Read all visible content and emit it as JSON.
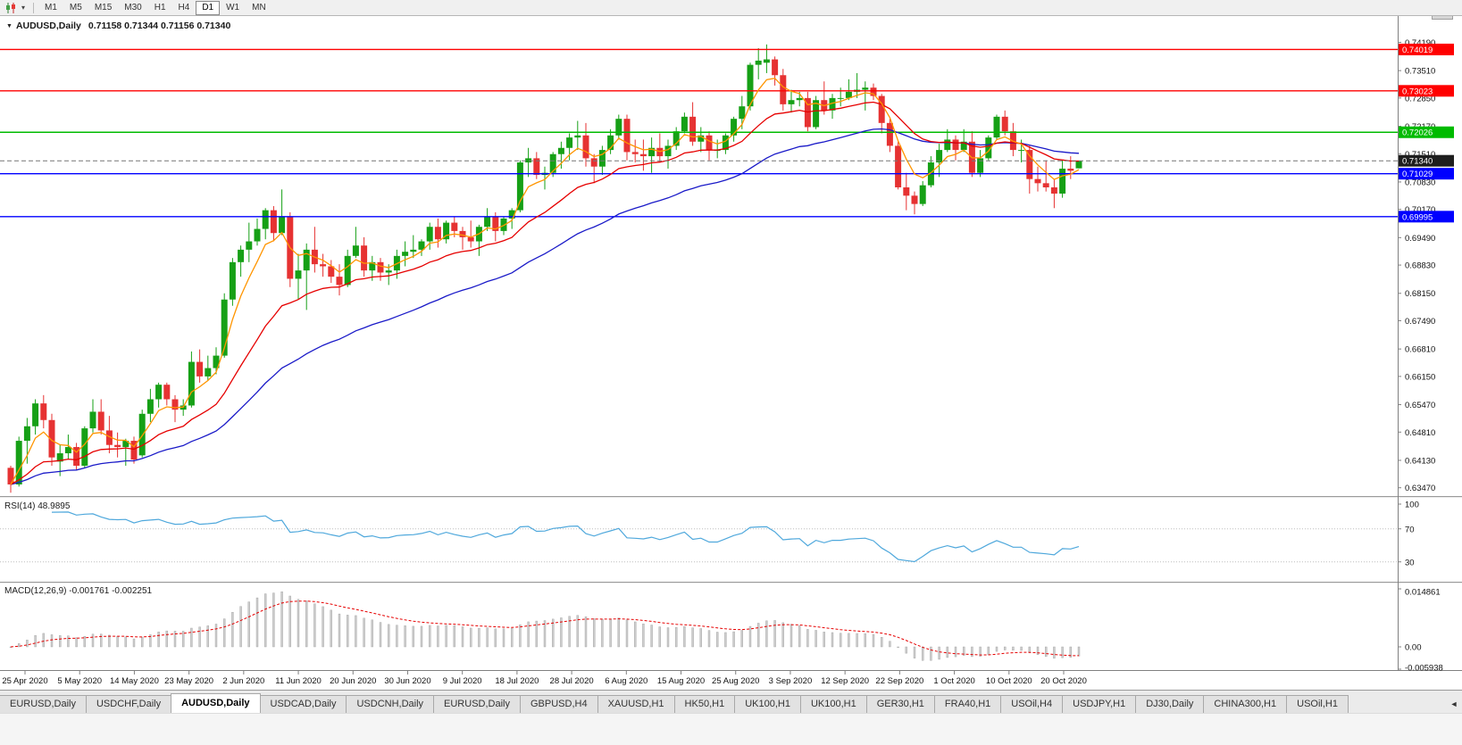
{
  "toolbar": {
    "timeframes": [
      "M1",
      "M5",
      "M15",
      "M30",
      "H1",
      "H4",
      "D1",
      "W1",
      "MN"
    ],
    "active_timeframe": "D1"
  },
  "chart": {
    "symbol_title": "AUDUSD,Daily",
    "ohlc_readout": "0.71158 0.71344 0.71156 0.71340"
  },
  "chart_data": {
    "type": "candlestick",
    "symbol": "AUDUSD",
    "period": "Daily",
    "title": "AUDUSD,Daily 0.71158 0.71344 0.71156 0.71340",
    "colors": {
      "up": "#16A016",
      "down": "#E63232",
      "ma_fast": "#FF9500",
      "ma_mid": "#E60000",
      "ma_slow": "#1A1AC8",
      "rsi_line": "#4FA8DC",
      "macd_hist": "#CDCDCD",
      "macd_hist_edge": "#9F9F9F",
      "macd_signal": "#E60000",
      "bid_line": "#777777",
      "bid_label_bg": "#1E1E1E",
      "axis_text": "#111111"
    },
    "price_axis_ticks": [
      "0.74190",
      "0.73510",
      "0.72850",
      "0.72170",
      "0.71510",
      "0.70830",
      "0.70170",
      "0.69490",
      "0.68830",
      "0.68150",
      "0.67490",
      "0.66810",
      "0.66150",
      "0.65470",
      "0.64810",
      "0.64130",
      "0.63470"
    ],
    "hlines": [
      {
        "value": 0.74019,
        "label": "0.74019",
        "color": "#FF0000"
      },
      {
        "value": 0.73023,
        "label": "0.73023",
        "color": "#FF0000"
      },
      {
        "value": 0.72026,
        "label": "0.72026",
        "color": "#00BB00"
      },
      {
        "value": 0.71029,
        "label": "0.71029",
        "color": "#0000FF"
      },
      {
        "value": 0.69995,
        "label": "0.69995",
        "color": "#0000FF"
      }
    ],
    "bid": {
      "value": 0.7134,
      "label": "0.71340"
    },
    "moving_averages": [
      {
        "type": "ema",
        "period": 40,
        "color": "#1A1AC8"
      },
      {
        "type": "ema",
        "period": 18,
        "color": "#E60000"
      },
      {
        "type": "ema",
        "period": 5,
        "color": "#FF9500"
      }
    ],
    "date_labels": [
      "25 Apr 2020",
      "5 May 2020",
      "14 May 2020",
      "23 May 2020",
      "2 Jun 2020",
      "11 Jun 2020",
      "20 Jun 2020",
      "30 Jun 2020",
      "9 Jul 2020",
      "18 Jul 2020",
      "28 Jul 2020",
      "6 Aug 2020",
      "15 Aug 2020",
      "25 Aug 2020",
      "3 Sep 2020",
      "12 Sep 2020",
      "22 Sep 2020",
      "1 Oct 2020",
      "10 Oct 2020",
      "20 Oct 2020"
    ],
    "rsi": {
      "label": "RSI(14) 48.9895",
      "period": 14,
      "current": 48.9895,
      "levels": [
        70,
        30
      ],
      "axis_ticks": [
        "100",
        "70",
        "30"
      ]
    },
    "macd": {
      "label": "MACD(12,26,9) -0.001761 -0.002251",
      "fast": 12,
      "slow": 26,
      "signal": 9,
      "current_main": -0.001761,
      "current_signal": -0.002251,
      "axis_ticks": [
        "0.014861",
        "0.00",
        "-0.005938"
      ],
      "axis_values": [
        0.014861,
        0,
        -0.005938
      ]
    },
    "ohlc": [
      [
        0.6395,
        0.64,
        0.6335,
        0.6355
      ],
      [
        0.6355,
        0.647,
        0.635,
        0.646
      ],
      [
        0.646,
        0.6515,
        0.6405,
        0.6495
      ],
      [
        0.6495,
        0.656,
        0.6475,
        0.655
      ],
      [
        0.655,
        0.657,
        0.649,
        0.651
      ],
      [
        0.651,
        0.6525,
        0.64,
        0.642
      ],
      [
        0.641,
        0.645,
        0.6375,
        0.643
      ],
      [
        0.643,
        0.6475,
        0.6415,
        0.6445
      ],
      [
        0.6445,
        0.6455,
        0.639,
        0.64
      ],
      [
        0.64,
        0.6495,
        0.6395,
        0.649
      ],
      [
        0.649,
        0.656,
        0.648,
        0.653
      ],
      [
        0.653,
        0.656,
        0.6475,
        0.6485
      ],
      [
        0.6485,
        0.652,
        0.643,
        0.645
      ],
      [
        0.645,
        0.648,
        0.642,
        0.6445
      ],
      [
        0.6445,
        0.6465,
        0.64,
        0.646
      ],
      [
        0.646,
        0.647,
        0.6405,
        0.6415
      ],
      [
        0.6425,
        0.6535,
        0.642,
        0.6525
      ],
      [
        0.6525,
        0.6585,
        0.6505,
        0.656
      ],
      [
        0.656,
        0.66,
        0.654,
        0.6595
      ],
      [
        0.6595,
        0.66,
        0.6545,
        0.656
      ],
      [
        0.656,
        0.657,
        0.6505,
        0.6535
      ],
      [
        0.6535,
        0.656,
        0.652,
        0.6545
      ],
      [
        0.6545,
        0.6675,
        0.654,
        0.665
      ],
      [
        0.665,
        0.668,
        0.66,
        0.6615
      ],
      [
        0.6615,
        0.6665,
        0.6605,
        0.6635
      ],
      [
        0.6635,
        0.6685,
        0.662,
        0.6665
      ],
      [
        0.6665,
        0.6815,
        0.666,
        0.68
      ],
      [
        0.68,
        0.69,
        0.6785,
        0.689
      ],
      [
        0.689,
        0.693,
        0.6855,
        0.692
      ],
      [
        0.692,
        0.6985,
        0.689,
        0.694
      ],
      [
        0.694,
        0.6995,
        0.693,
        0.697
      ],
      [
        0.697,
        0.702,
        0.6945,
        0.7015
      ],
      [
        0.7015,
        0.7025,
        0.694,
        0.696
      ],
      [
        0.696,
        0.7065,
        0.6955,
        0.7
      ],
      [
        0.7,
        0.701,
        0.683,
        0.685
      ],
      [
        0.685,
        0.691,
        0.68,
        0.687
      ],
      [
        0.687,
        0.6935,
        0.6775,
        0.692
      ],
      [
        0.692,
        0.6975,
        0.6865,
        0.6885
      ],
      [
        0.6885,
        0.691,
        0.6855,
        0.688
      ],
      [
        0.688,
        0.6895,
        0.684,
        0.6855
      ],
      [
        0.6855,
        0.6885,
        0.681,
        0.6835
      ],
      [
        0.6835,
        0.692,
        0.683,
        0.6905
      ],
      [
        0.6905,
        0.6975,
        0.69,
        0.693
      ],
      [
        0.693,
        0.695,
        0.6855,
        0.687
      ],
      [
        0.687,
        0.6905,
        0.6845,
        0.689
      ],
      [
        0.689,
        0.69,
        0.6845,
        0.6865
      ],
      [
        0.6865,
        0.6885,
        0.6835,
        0.687
      ],
      [
        0.687,
        0.692,
        0.685,
        0.6905
      ],
      [
        0.6905,
        0.694,
        0.688,
        0.6915
      ],
      [
        0.6915,
        0.6955,
        0.69,
        0.692
      ],
      [
        0.692,
        0.6945,
        0.6905,
        0.694
      ],
      [
        0.694,
        0.6985,
        0.692,
        0.6975
      ],
      [
        0.6975,
        0.6995,
        0.6925,
        0.6945
      ],
      [
        0.6945,
        0.699,
        0.6935,
        0.6985
      ],
      [
        0.6985,
        0.7,
        0.695,
        0.6965
      ],
      [
        0.6965,
        0.6975,
        0.692,
        0.695
      ],
      [
        0.695,
        0.699,
        0.6925,
        0.694
      ],
      [
        0.694,
        0.698,
        0.6905,
        0.6975
      ],
      [
        0.6975,
        0.702,
        0.6965,
        0.7
      ],
      [
        0.7,
        0.701,
        0.694,
        0.6965
      ],
      [
        0.6965,
        0.7,
        0.6955,
        0.6995
      ],
      [
        0.6995,
        0.702,
        0.697,
        0.7015
      ],
      [
        0.7015,
        0.7135,
        0.701,
        0.713
      ],
      [
        0.713,
        0.7165,
        0.7095,
        0.714
      ],
      [
        0.714,
        0.7155,
        0.709,
        0.71
      ],
      [
        0.71,
        0.712,
        0.7065,
        0.7105
      ],
      [
        0.7105,
        0.7155,
        0.7095,
        0.715
      ],
      [
        0.715,
        0.718,
        0.7115,
        0.7165
      ],
      [
        0.7165,
        0.72,
        0.7135,
        0.719
      ],
      [
        0.719,
        0.723,
        0.716,
        0.7195
      ],
      [
        0.7195,
        0.7225,
        0.712,
        0.714
      ],
      [
        0.714,
        0.715,
        0.708,
        0.712
      ],
      [
        0.712,
        0.717,
        0.71,
        0.716
      ],
      [
        0.716,
        0.721,
        0.715,
        0.7195
      ],
      [
        0.7195,
        0.7245,
        0.7185,
        0.7235
      ],
      [
        0.7235,
        0.7245,
        0.7135,
        0.7155
      ],
      [
        0.7155,
        0.7185,
        0.713,
        0.715
      ],
      [
        0.715,
        0.7185,
        0.711,
        0.7145
      ],
      [
        0.7145,
        0.719,
        0.7105,
        0.7165
      ],
      [
        0.7165,
        0.72,
        0.713,
        0.7145
      ],
      [
        0.7145,
        0.7185,
        0.7115,
        0.717
      ],
      [
        0.717,
        0.7215,
        0.716,
        0.7205
      ],
      [
        0.7205,
        0.725,
        0.72,
        0.724
      ],
      [
        0.724,
        0.7275,
        0.717,
        0.718
      ],
      [
        0.718,
        0.7215,
        0.7155,
        0.7195
      ],
      [
        0.7195,
        0.7205,
        0.7135,
        0.716
      ],
      [
        0.716,
        0.7185,
        0.714,
        0.716
      ],
      [
        0.716,
        0.72,
        0.715,
        0.7195
      ],
      [
        0.7195,
        0.724,
        0.718,
        0.7235
      ],
      [
        0.7235,
        0.729,
        0.721,
        0.7265
      ],
      [
        0.7265,
        0.737,
        0.7255,
        0.7365
      ],
      [
        0.7365,
        0.7405,
        0.733,
        0.7375
      ],
      [
        0.737,
        0.7414,
        0.7345,
        0.7378
      ],
      [
        0.7378,
        0.7385,
        0.7315,
        0.734
      ],
      [
        0.734,
        0.7355,
        0.7255,
        0.727
      ],
      [
        0.727,
        0.7305,
        0.725,
        0.728
      ],
      [
        0.728,
        0.73,
        0.7265,
        0.7285
      ],
      [
        0.7285,
        0.73,
        0.7205,
        0.7215
      ],
      [
        0.7215,
        0.729,
        0.721,
        0.728
      ],
      [
        0.728,
        0.7325,
        0.7245,
        0.7255
      ],
      [
        0.7255,
        0.7295,
        0.7235,
        0.7285
      ],
      [
        0.7285,
        0.731,
        0.7265,
        0.7285
      ],
      [
        0.7285,
        0.733,
        0.728,
        0.73
      ],
      [
        0.73,
        0.7345,
        0.7285,
        0.7305
      ],
      [
        0.7305,
        0.7325,
        0.7255,
        0.731
      ],
      [
        0.731,
        0.732,
        0.728,
        0.729
      ],
      [
        0.729,
        0.7295,
        0.72,
        0.7225
      ],
      [
        0.7225,
        0.7235,
        0.7155,
        0.717
      ],
      [
        0.717,
        0.718,
        0.7065,
        0.707
      ],
      [
        0.707,
        0.7105,
        0.7015,
        0.705
      ],
      [
        0.705,
        0.706,
        0.7005,
        0.703
      ],
      [
        0.703,
        0.7085,
        0.7025,
        0.7075
      ],
      [
        0.7075,
        0.7145,
        0.707,
        0.713
      ],
      [
        0.713,
        0.7175,
        0.7095,
        0.716
      ],
      [
        0.716,
        0.721,
        0.7155,
        0.7185
      ],
      [
        0.7185,
        0.7195,
        0.7135,
        0.716
      ],
      [
        0.716,
        0.721,
        0.7155,
        0.718
      ],
      [
        0.718,
        0.7205,
        0.7095,
        0.7105
      ],
      [
        0.7105,
        0.716,
        0.7095,
        0.714
      ],
      [
        0.714,
        0.7195,
        0.7135,
        0.719
      ],
      [
        0.719,
        0.7245,
        0.7185,
        0.724
      ],
      [
        0.724,
        0.7255,
        0.7195,
        0.7205
      ],
      [
        0.7205,
        0.7225,
        0.7145,
        0.716
      ],
      [
        0.716,
        0.7185,
        0.713,
        0.716
      ],
      [
        0.716,
        0.717,
        0.7055,
        0.709
      ],
      [
        0.709,
        0.712,
        0.706,
        0.708
      ],
      [
        0.708,
        0.7135,
        0.706,
        0.707
      ],
      [
        0.707,
        0.709,
        0.702,
        0.7055
      ],
      [
        0.7055,
        0.7135,
        0.7045,
        0.7115
      ],
      [
        0.7115,
        0.7145,
        0.709,
        0.711
      ],
      [
        0.71158,
        0.71344,
        0.71156,
        0.7134
      ]
    ]
  },
  "tabs": {
    "active_index": 2,
    "scroll_left_glyph": "◄",
    "items": [
      "EURUSD,Daily",
      "USDCHF,Daily",
      "AUDUSD,Daily",
      "USDCAD,Daily",
      "USDCNH,Daily",
      "EURUSD,Daily",
      "GBPUSD,H4",
      "XAUUSD,H1",
      "HK50,H1",
      "UK100,H1",
      "UK100,H1",
      "GER30,H1",
      "FRA40,H1",
      "USOil,H4",
      "USDJPY,H1",
      "DJ30,Daily",
      "CHINA300,H1",
      "USOil,H1"
    ]
  }
}
